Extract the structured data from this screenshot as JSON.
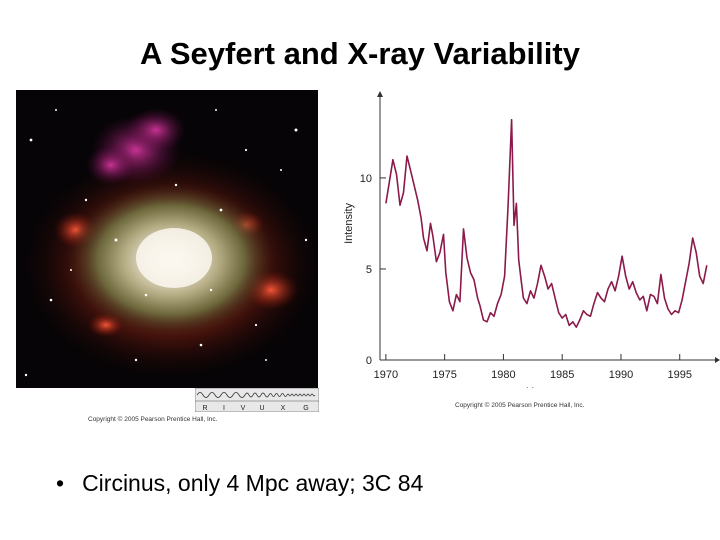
{
  "slide": {
    "title": "A Seyfert and X-ray Variability",
    "bullet": "Circinus, only 4 Mpc away; 3C 84"
  },
  "image": {
    "spectrum_bands": [
      "R",
      "I",
      "V",
      "U",
      "X",
      "G"
    ],
    "copyright": "Copyright © 2005 Pearson Prentice Hall, Inc."
  },
  "chart_data": {
    "type": "line",
    "title": "",
    "xlabel": "Year",
    "ylabel": "Intensity",
    "xlim": [
      1969.5,
      1998
    ],
    "ylim": [
      0,
      14.5
    ],
    "xticks": [
      1970,
      1975,
      1980,
      1985,
      1990,
      1995
    ],
    "yticks": [
      0,
      5,
      10
    ],
    "line_color": "#8b1a4a",
    "copyright": "Copyright © 2005 Pearson Prentice Hall, Inc.",
    "series": [
      {
        "x": [
          1970.0,
          1970.3,
          1970.6,
          1970.9,
          1971.2,
          1971.5,
          1971.8,
          1972.1,
          1972.4,
          1972.7,
          1973.0,
          1973.2,
          1973.5,
          1973.8,
          1974.0,
          1974.3,
          1974.6,
          1974.9,
          1975.1,
          1975.4,
          1975.7,
          1976.0,
          1976.3,
          1976.6,
          1976.9,
          1977.2,
          1977.5,
          1977.8,
          1978.0,
          1978.3,
          1978.6,
          1978.9,
          1979.2,
          1979.5,
          1979.8,
          1980.1,
          1980.4,
          1980.7,
          1980.9,
          1981.1,
          1981.3,
          1981.5,
          1981.7,
          1982.0,
          1982.3,
          1982.6,
          1982.9,
          1983.2,
          1983.5,
          1983.8,
          1984.1,
          1984.4,
          1984.7,
          1985.0,
          1985.3,
          1985.6,
          1985.9,
          1986.2,
          1986.5,
          1986.8,
          1987.1,
          1987.4,
          1987.7,
          1988.0,
          1988.3,
          1988.6,
          1988.9,
          1989.2,
          1989.5,
          1989.8,
          1990.1,
          1990.4,
          1990.7,
          1991.0,
          1991.3,
          1991.6,
          1991.9,
          1992.2,
          1992.5,
          1992.8,
          1993.1,
          1993.4,
          1993.7,
          1994.0,
          1994.3,
          1994.6,
          1994.9,
          1995.2,
          1995.5,
          1995.8,
          1996.1,
          1996.4,
          1996.7,
          1997.0,
          1997.3
        ],
        "y": [
          8.6,
          9.8,
          11.0,
          10.2,
          8.5,
          9.2,
          11.2,
          10.4,
          9.6,
          8.8,
          7.8,
          6.7,
          6.0,
          7.5,
          6.8,
          5.4,
          5.9,
          6.9,
          4.8,
          3.2,
          2.7,
          3.6,
          3.2,
          7.2,
          5.6,
          4.8,
          4.4,
          3.4,
          3.0,
          2.2,
          2.1,
          2.6,
          2.4,
          3.1,
          3.6,
          4.6,
          8.5,
          13.2,
          7.4,
          8.6,
          5.5,
          4.4,
          3.4,
          3.1,
          3.8,
          3.4,
          4.2,
          5.2,
          4.6,
          3.9,
          4.2,
          3.4,
          2.6,
          2.3,
          2.5,
          1.9,
          2.1,
          1.8,
          2.2,
          2.7,
          2.5,
          2.4,
          3.1,
          3.7,
          3.4,
          3.2,
          3.9,
          4.3,
          3.8,
          4.6,
          5.7,
          4.6,
          3.9,
          4.3,
          3.7,
          3.3,
          3.5,
          2.7,
          3.6,
          3.5,
          3.1,
          4.7,
          3.4,
          2.8,
          2.5,
          2.7,
          2.6,
          3.3,
          4.3,
          5.3,
          6.7,
          5.9,
          4.6,
          4.2,
          5.2
        ]
      }
    ]
  }
}
